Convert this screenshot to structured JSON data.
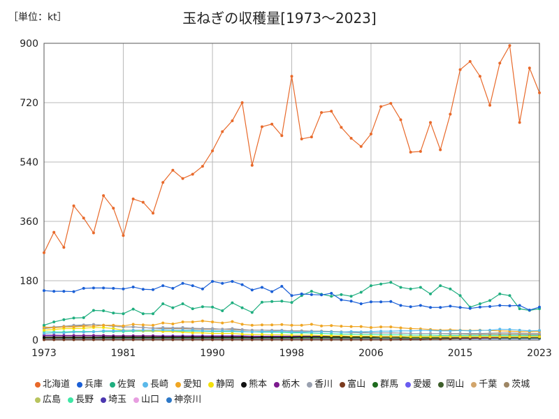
{
  "chart_data": {
    "type": "line",
    "title": "玉ねぎの収穫量[1973〜2023]",
    "unit_label": "［単位：kt］",
    "xlim": [
      1973,
      2023
    ],
    "ylim": [
      0,
      900
    ],
    "x_ticks": [
      1973,
      1981,
      1990,
      1998,
      2006,
      2015,
      2023
    ],
    "y_ticks": [
      0,
      180,
      360,
      540,
      720,
      900
    ],
    "grid": true,
    "legend_position": "bottom",
    "x": [
      1973,
      1974,
      1975,
      1976,
      1977,
      1978,
      1979,
      1980,
      1981,
      1982,
      1983,
      1984,
      1985,
      1986,
      1987,
      1988,
      1989,
      1990,
      1991,
      1992,
      1993,
      1994,
      1995,
      1996,
      1997,
      1998,
      1999,
      2000,
      2001,
      2002,
      2003,
      2004,
      2005,
      2006,
      2007,
      2008,
      2009,
      2010,
      2011,
      2012,
      2013,
      2014,
      2015,
      2016,
      2017,
      2018,
      2019,
      2020,
      2021,
      2022,
      2023
    ],
    "series": [
      {
        "name": "北海道",
        "color": "#e8692a",
        "values": [
          265,
          327,
          281,
          407,
          370,
          325,
          438,
          400,
          317,
          428,
          418,
          385,
          478,
          515,
          490,
          503,
          527,
          574,
          632,
          665,
          720,
          530,
          647,
          655,
          620,
          800,
          610,
          616,
          690,
          694,
          645,
          612,
          587,
          625,
          708,
          718,
          668,
          570,
          572,
          660,
          577,
          685,
          820,
          845,
          800,
          712,
          840,
          893,
          660,
          825,
          750
        ]
      },
      {
        "name": "兵庫",
        "color": "#1a5fd6",
        "values": [
          150,
          148,
          148,
          147,
          157,
          158,
          158,
          157,
          155,
          161,
          154,
          153,
          165,
          157,
          172,
          165,
          155,
          178,
          172,
          178,
          168,
          152,
          160,
          147,
          163,
          135,
          140,
          138,
          137,
          142,
          122,
          118,
          110,
          116,
          116,
          117,
          105,
          101,
          105,
          99,
          99,
          103,
          99,
          96,
          100,
          102,
          105,
          104,
          105,
          91,
          100
        ]
      },
      {
        "name": "佐賀",
        "color": "#1fae7f",
        "values": [
          45,
          55,
          62,
          67,
          68,
          90,
          89,
          82,
          80,
          94,
          80,
          80,
          110,
          98,
          110,
          95,
          101,
          100,
          89,
          113,
          98,
          84,
          115,
          117,
          118,
          114,
          135,
          148,
          139,
          133,
          138,
          133,
          145,
          165,
          170,
          175,
          160,
          155,
          160,
          140,
          165,
          155,
          135,
          100,
          110,
          120,
          140,
          135,
          95,
          90,
          95
        ]
      },
      {
        "name": "長崎",
        "color": "#5bb9ea",
        "values": [
          20,
          22,
          22,
          24,
          24,
          25,
          28,
          28,
          29,
          30,
          30,
          30,
          31,
          30,
          30,
          30,
          28,
          28,
          28,
          28,
          26,
          25,
          26,
          26,
          27,
          25,
          24,
          25,
          25,
          25,
          24,
          26,
          25,
          26,
          27,
          27,
          28,
          28,
          29,
          29,
          28,
          28,
          29,
          28,
          29,
          30,
          33,
          32,
          30,
          28,
          29
        ]
      },
      {
        "name": "愛知",
        "color": "#f0a623",
        "values": [
          40,
          37,
          40,
          40,
          42,
          42,
          45,
          45,
          43,
          48,
          46,
          45,
          52,
          49,
          55,
          55,
          58,
          55,
          52,
          56,
          48,
          45,
          46,
          46,
          47,
          45,
          45,
          48,
          43,
          44,
          42,
          41,
          41,
          38,
          40,
          40,
          37,
          35,
          34,
          32,
          30,
          31,
          30,
          29,
          30,
          29,
          28,
          27,
          26,
          25,
          26
        ]
      },
      {
        "name": "静岡",
        "color": "#f3e00a",
        "values": [
          30,
          32,
          35,
          35,
          36,
          38,
          38,
          35,
          30,
          30,
          28,
          28,
          26,
          26,
          24,
          22,
          22,
          20,
          20,
          20,
          18,
          17,
          17,
          16,
          16,
          15,
          15,
          15,
          14,
          13,
          13,
          12,
          12,
          12,
          11,
          11,
          11,
          10,
          10,
          10,
          10,
          10,
          10,
          10,
          10,
          10,
          10,
          10,
          10,
          10,
          10
        ]
      },
      {
        "name": "熊本",
        "color": "#111111",
        "values": [
          8,
          8,
          8,
          8,
          8,
          8,
          9,
          9,
          9,
          9,
          9,
          9,
          9,
          9,
          9,
          9,
          9,
          9,
          9,
          9,
          9,
          8,
          9,
          9,
          9,
          9,
          10,
          10,
          10,
          10,
          10,
          10,
          10,
          10,
          11,
          11,
          10,
          10,
          10,
          10,
          10,
          10,
          10,
          10,
          10,
          10,
          10,
          10,
          10,
          10,
          10
        ]
      },
      {
        "name": "栃木",
        "color": "#7c1a8e",
        "values": [
          15,
          15,
          14,
          14,
          14,
          14,
          14,
          13,
          13,
          13,
          13,
          13,
          12,
          12,
          12,
          12,
          12,
          12,
          12,
          12,
          12,
          11,
          11,
          11,
          11,
          11,
          11,
          11,
          11,
          10,
          10,
          10,
          10,
          10,
          10,
          10,
          10,
          10,
          10,
          10,
          9,
          9,
          9,
          9,
          9,
          9,
          9,
          9,
          9,
          9,
          9
        ]
      },
      {
        "name": "香川",
        "color": "#9aa1b0",
        "values": [
          38,
          40,
          42,
          45,
          46,
          47,
          45,
          42,
          40,
          40,
          38,
          36,
          38,
          37,
          38,
          36,
          35,
          35,
          33,
          35,
          32,
          30,
          30,
          30,
          30,
          27,
          27,
          27,
          26,
          25,
          24,
          23,
          22,
          22,
          22,
          22,
          21,
          20,
          20,
          20,
          20,
          20,
          20,
          20,
          20,
          21,
          22,
          22,
          21,
          20,
          20
        ]
      },
      {
        "name": "富山",
        "color": "#7a3a1e",
        "values": [
          1,
          1,
          1,
          1,
          1,
          1,
          1,
          1,
          1,
          1,
          1,
          1,
          1,
          1,
          1,
          1,
          1,
          1,
          1,
          1,
          1,
          1,
          1,
          1,
          1,
          1,
          1,
          1,
          1,
          1,
          1,
          1,
          1,
          1,
          1,
          1,
          2,
          2,
          2,
          3,
          3,
          4,
          5,
          5,
          6,
          7,
          8,
          9,
          9,
          9,
          10
        ]
      },
      {
        "name": "群馬",
        "color": "#1e6b1e",
        "values": [
          6,
          6,
          6,
          6,
          6,
          6,
          6,
          6,
          6,
          6,
          6,
          6,
          6,
          6,
          6,
          6,
          6,
          6,
          6,
          6,
          6,
          6,
          6,
          6,
          6,
          6,
          6,
          6,
          6,
          6,
          6,
          6,
          6,
          6,
          6,
          6,
          6,
          6,
          6,
          6,
          6,
          6,
          6,
          6,
          6,
          6,
          6,
          6,
          6,
          6,
          6
        ]
      },
      {
        "name": "愛媛",
        "color": "#6a5cf0",
        "values": [
          13,
          13,
          13,
          13,
          13,
          13,
          13,
          13,
          13,
          13,
          13,
          13,
          13,
          13,
          13,
          13,
          13,
          13,
          13,
          13,
          13,
          12,
          12,
          12,
          12,
          12,
          12,
          12,
          12,
          11,
          11,
          11,
          11,
          11,
          11,
          11,
          11,
          10,
          10,
          10,
          10,
          10,
          10,
          10,
          10,
          10,
          10,
          10,
          10,
          10,
          10
        ]
      },
      {
        "name": "岡山",
        "color": "#3d5e2a",
        "values": [
          7,
          7,
          7,
          7,
          7,
          7,
          7,
          7,
          7,
          7,
          7,
          7,
          7,
          7,
          7,
          7,
          7,
          7,
          7,
          7,
          7,
          7,
          7,
          7,
          7,
          7,
          7,
          7,
          7,
          7,
          7,
          7,
          7,
          7,
          7,
          7,
          7,
          7,
          7,
          7,
          7,
          7,
          7,
          7,
          7,
          7,
          7,
          7,
          7,
          7,
          7
        ]
      },
      {
        "name": "千葉",
        "color": "#d2a56b",
        "values": [
          10,
          10,
          10,
          10,
          10,
          10,
          10,
          10,
          10,
          10,
          10,
          10,
          10,
          10,
          10,
          10,
          10,
          10,
          10,
          10,
          10,
          10,
          10,
          10,
          10,
          10,
          10,
          10,
          10,
          10,
          10,
          10,
          10,
          10,
          10,
          10,
          10,
          10,
          10,
          10,
          10,
          10,
          10,
          10,
          10,
          10,
          10,
          10,
          10,
          10,
          10
        ]
      },
      {
        "name": "茨城",
        "color": "#9e8665",
        "values": [
          35,
          38,
          40,
          42,
          44,
          47,
          45,
          42,
          40,
          40,
          38,
          36,
          35,
          35,
          35,
          34,
          33,
          33,
          33,
          32,
          30,
          30,
          30,
          29,
          29,
          28,
          28,
          27,
          27,
          26,
          25,
          24,
          24,
          22,
          22,
          22,
          21,
          20,
          20,
          20,
          20,
          19,
          19,
          18,
          18,
          18,
          18,
          18,
          18,
          17,
          17
        ]
      },
      {
        "name": "広島",
        "color": "#b8c45e",
        "values": [
          9,
          9,
          9,
          9,
          9,
          9,
          9,
          9,
          9,
          9,
          9,
          9,
          9,
          9,
          9,
          9,
          9,
          9,
          9,
          9,
          9,
          9,
          9,
          9,
          9,
          9,
          9,
          9,
          9,
          9,
          9,
          9,
          9,
          9,
          9,
          9,
          9,
          9,
          9,
          9,
          9,
          9,
          9,
          9,
          9,
          9,
          9,
          9,
          9,
          9,
          9
        ]
      },
      {
        "name": "長野",
        "color": "#3ee6a5",
        "values": [
          25,
          25,
          25,
          26,
          26,
          26,
          26,
          26,
          26,
          27,
          27,
          27,
          27,
          27,
          27,
          27,
          27,
          26,
          26,
          26,
          25,
          25,
          24,
          24,
          23,
          22,
          22,
          21,
          20,
          19,
          18,
          18,
          17,
          17,
          16,
          16,
          16,
          15,
          15,
          15,
          14,
          14,
          14,
          14,
          14,
          14,
          14,
          14,
          14,
          14,
          14
        ]
      },
      {
        "name": "埼玉",
        "color": "#4c37b0",
        "values": [
          12,
          12,
          12,
          12,
          12,
          12,
          12,
          12,
          12,
          12,
          12,
          12,
          12,
          12,
          12,
          12,
          12,
          12,
          12,
          11,
          11,
          11,
          11,
          11,
          11,
          11,
          11,
          10,
          10,
          10,
          10,
          10,
          10,
          10,
          10,
          10,
          10,
          10,
          10,
          9,
          9,
          9,
          9,
          9,
          9,
          9,
          9,
          9,
          9,
          9,
          9
        ]
      },
      {
        "name": "山口",
        "color": "#e79ee0",
        "values": [
          5,
          5,
          5,
          5,
          5,
          5,
          5,
          5,
          5,
          5,
          5,
          5,
          5,
          5,
          5,
          5,
          5,
          5,
          5,
          5,
          5,
          5,
          5,
          5,
          5,
          5,
          5,
          5,
          5,
          5,
          5,
          5,
          5,
          5,
          5,
          5,
          5,
          5,
          5,
          5,
          5,
          5,
          5,
          5,
          5,
          5,
          5,
          5,
          5,
          5,
          5
        ]
      },
      {
        "name": "神奈川",
        "color": "#2d78c7",
        "values": [
          4,
          4,
          4,
          4,
          4,
          4,
          4,
          4,
          4,
          4,
          4,
          4,
          4,
          4,
          4,
          4,
          4,
          4,
          4,
          4,
          4,
          4,
          4,
          4,
          4,
          4,
          4,
          4,
          4,
          4,
          4,
          4,
          4,
          4,
          4,
          4,
          4,
          4,
          4,
          4,
          4,
          4,
          4,
          4,
          4,
          4,
          4,
          4,
          4,
          4,
          4
        ]
      }
    ]
  }
}
